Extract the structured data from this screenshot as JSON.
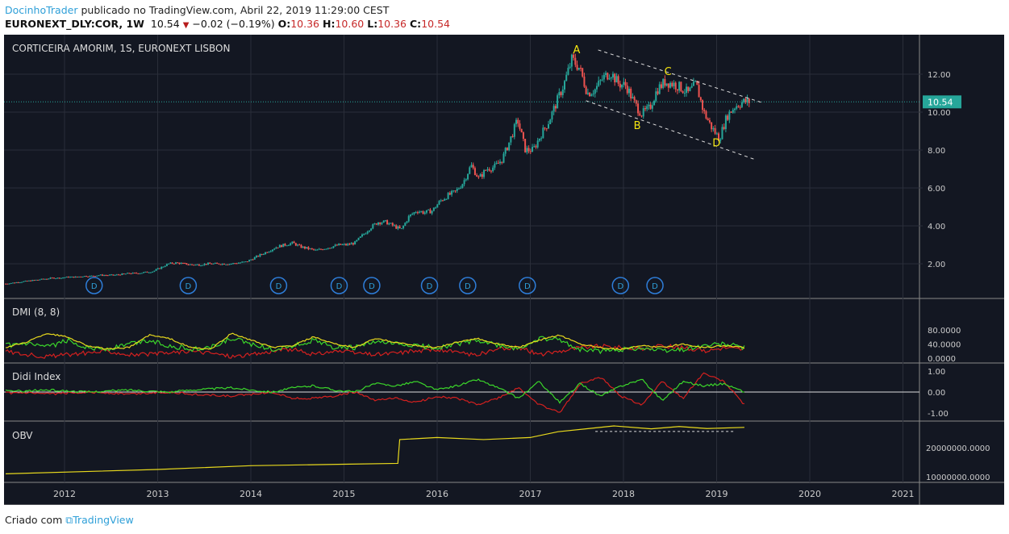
{
  "header": {
    "author": "DocinhoTrader",
    "published": "publicado no TradingView.com, Abril 22, 2019 11:29:00 CEST",
    "symbol": "EURONEXT_DLY:COR, 1W",
    "last": "10.54",
    "change": "−0.02 (−0.19%)",
    "o_label": "O:",
    "o": "10.36",
    "h_label": "H:",
    "h": "10.60",
    "l_label": "L:",
    "l": "10.36",
    "c_label": "C:",
    "c": "10.54"
  },
  "chart_title": "CORTICEIRA AMORIM, 1S, EURONEXT LISBON",
  "last_price_tag": "10.54",
  "colors": {
    "bg": "#131722",
    "up": "#26a69a",
    "down": "#ef5350",
    "tag": "#26a69a",
    "yellow": "#e8d91d",
    "green": "#3bd62a",
    "red": "#d4201f"
  },
  "price_axis": [
    "12.00",
    "10.00",
    "8.00",
    "6.00",
    "4.00",
    "2.00"
  ],
  "time_axis": [
    "2012",
    "2013",
    "2014",
    "2015",
    "2016",
    "2017",
    "2018",
    "2019",
    "2020",
    "2021"
  ],
  "chart_data": {
    "type": "candlestick",
    "start_year": 2011.37,
    "monthly_close": [
      0.95,
      1.0,
      1.05,
      1.1,
      1.15,
      1.2,
      1.25,
      1.25,
      1.3,
      1.3,
      1.35,
      1.35,
      1.4,
      1.4,
      1.4,
      1.45,
      1.5,
      1.5,
      1.55,
      1.6,
      1.8,
      2.0,
      2.05,
      2.0,
      1.95,
      1.95,
      2.0,
      2.0,
      2.0,
      2.0,
      2.05,
      2.1,
      2.3,
      2.5,
      2.7,
      2.9,
      3.0,
      3.1,
      2.9,
      2.8,
      2.7,
      2.8,
      2.9,
      3.0,
      3.0,
      3.1,
      3.5,
      3.9,
      4.2,
      4.2,
      4.0,
      3.8,
      4.5,
      4.8,
      4.7,
      4.8,
      5.3,
      5.6,
      5.8,
      6.3,
      7.2,
      6.5,
      7.0,
      7.1,
      7.5,
      8.5,
      9.6,
      8.0,
      8.0,
      8.8,
      9.5,
      10.5,
      11.5,
      12.8,
      12.3,
      11.0,
      11.2,
      11.8,
      12.1,
      11.5,
      11.4,
      10.5,
      9.9,
      10.2,
      11.2,
      11.6,
      11.5,
      11.3,
      11.0,
      11.5,
      10.0,
      9.2,
      8.6,
      9.8,
      10.3,
      10.54
    ],
    "dividend_marker": "D",
    "dividends": [
      2012.32,
      2013.33,
      2014.3,
      2014.95,
      2015.3,
      2015.92,
      2016.33,
      2016.97,
      2017.97,
      2018.34
    ],
    "wave_labels": [
      {
        "t": "A",
        "year": 2017.5,
        "price": 13.1
      },
      {
        "t": "B",
        "year": 2018.15,
        "price": 9.1
      },
      {
        "t": "C",
        "year": 2018.48,
        "price": 11.95
      },
      {
        "t": "D",
        "year": 2019.0,
        "price": 8.2
      }
    ],
    "trendlines": [
      {
        "from": [
          2017.73,
          13.28
        ],
        "to": [
          2019.51,
          10.47
        ]
      },
      {
        "from": [
          2017.6,
          10.6
        ],
        "to": [
          2019.42,
          7.49
        ]
      }
    ],
    "dmi": {
      "title": "DMI (8, 8)",
      "axis": [
        "80.0000",
        "40.0000",
        "0.0000"
      ],
      "adx": [
        30,
        45,
        70,
        60,
        35,
        25,
        30,
        65,
        55,
        30,
        25,
        70,
        50,
        30,
        35,
        60,
        40,
        30,
        55,
        45,
        35,
        30,
        45,
        55,
        40,
        30,
        50,
        65,
        40,
        30,
        25,
        35,
        30,
        40,
        30,
        35,
        30
      ],
      "plus": [
        35,
        40,
        30,
        50,
        30,
        25,
        40,
        50,
        35,
        25,
        30,
        55,
        40,
        25,
        35,
        50,
        30,
        30,
        45,
        40,
        35,
        30,
        40,
        50,
        35,
        25,
        55,
        50,
        25,
        20,
        25,
        30,
        20,
        25,
        35,
        40,
        30
      ],
      "minus": [
        20,
        10,
        5,
        10,
        15,
        20,
        10,
        10,
        15,
        20,
        15,
        5,
        10,
        20,
        25,
        10,
        20,
        15,
        10,
        15,
        20,
        25,
        15,
        10,
        25,
        30,
        10,
        20,
        30,
        35,
        30,
        25,
        35,
        30,
        20,
        30,
        25
      ]
    },
    "didi": {
      "title": "Didi Index",
      "axis": [
        "1.00",
        "0.00",
        "-1.00"
      ],
      "green": [
        0.05,
        0.05,
        0.1,
        0.05,
        0,
        0.05,
        0.1,
        0.05,
        0,
        0.1,
        0.15,
        0.2,
        0.1,
        0,
        0.2,
        0.3,
        0.1,
        0,
        0.4,
        0.3,
        0.5,
        0.1,
        0.3,
        0.6,
        0.2,
        -0.3,
        0.5,
        -0.5,
        0.4,
        -0.2,
        0.3,
        0.6,
        -0.4,
        0.5,
        0.3,
        0.4,
        0
      ],
      "red": [
        -0.05,
        -0.05,
        -0.1,
        -0.05,
        0,
        -0.05,
        -0.1,
        -0.05,
        0,
        -0.1,
        -0.15,
        -0.2,
        -0.1,
        0,
        -0.3,
        -0.3,
        -0.2,
        0,
        -0.4,
        -0.3,
        -0.5,
        -0.2,
        -0.3,
        -0.6,
        -0.3,
        0.2,
        -0.6,
        -1.0,
        0.4,
        0.7,
        -0.2,
        -0.6,
        0.5,
        -0.3,
        0.9,
        0.5,
        -0.6
      ]
    },
    "obv": {
      "title": "OBV",
      "axis": [
        "20000000.0000",
        "10000000.0000"
      ],
      "points": [
        [
          2011.37,
          11.0
        ],
        [
          2013.0,
          12.5
        ],
        [
          2014.0,
          13.8
        ],
        [
          2015.0,
          14.3
        ],
        [
          2015.58,
          14.6
        ],
        [
          2015.6,
          22.8
        ],
        [
          2016.0,
          23.5
        ],
        [
          2016.5,
          22.8
        ],
        [
          2017.0,
          23.5
        ],
        [
          2017.3,
          25.5
        ],
        [
          2017.6,
          26.5
        ],
        [
          2017.9,
          27.5
        ],
        [
          2018.3,
          26.5
        ],
        [
          2018.6,
          27.3
        ],
        [
          2018.9,
          26.6
        ],
        [
          2019.3,
          27.0
        ]
      ],
      "support": [
        2017.7,
        2019.2,
        25.6
      ]
    }
  },
  "footer": {
    "created": "Criado com",
    "brand": "TradingView"
  }
}
